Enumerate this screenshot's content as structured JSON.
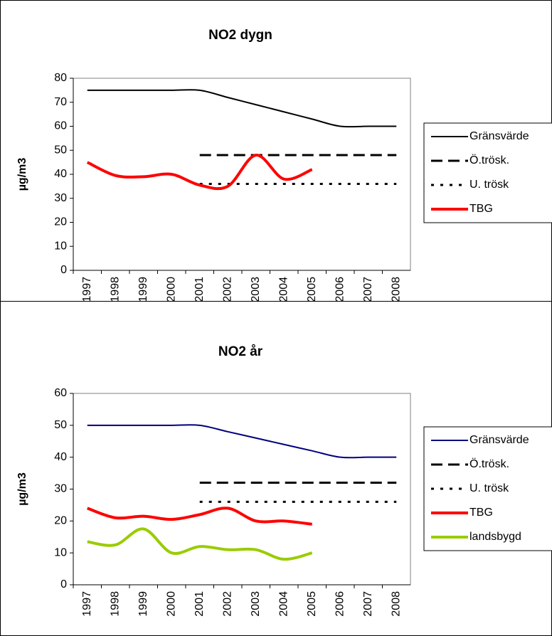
{
  "chart_data": [
    {
      "type": "line",
      "title": "NO2 dygn",
      "y_label": "µg/m3",
      "categories": [
        "1997",
        "1998",
        "1999",
        "2000",
        "2001",
        "2002",
        "2003",
        "2004",
        "2005",
        "2006",
        "2007",
        "2008"
      ],
      "ylim": [
        0,
        80
      ],
      "yticks": [
        0,
        10,
        20,
        30,
        40,
        50,
        60,
        70,
        80
      ],
      "series": [
        {
          "name": "Gränsvärde",
          "color": "#000000",
          "style": "solid",
          "values": [
            75,
            75,
            75,
            75,
            75,
            72,
            69,
            66,
            63,
            60,
            60,
            60
          ]
        },
        {
          "name": "Ö.trösk.",
          "color": "#000000",
          "style": "dashed",
          "values": [
            null,
            null,
            null,
            null,
            48,
            48,
            48,
            48,
            48,
            48,
            48,
            48
          ]
        },
        {
          "name": "U. trösk",
          "color": "#000000",
          "style": "dotted",
          "values": [
            null,
            null,
            null,
            null,
            36,
            36,
            36,
            36,
            36,
            36,
            36,
            36
          ]
        },
        {
          "name": "TBG",
          "color": "#ff0000",
          "style": "bold",
          "values": [
            45,
            39.5,
            39,
            40,
            35.5,
            35,
            48,
            38,
            42,
            null,
            null,
            null
          ]
        }
      ]
    },
    {
      "type": "line",
      "title": "NO2 år",
      "y_label": "µg/m3",
      "categories": [
        "1997",
        "1998",
        "1999",
        "2000",
        "2001",
        "2002",
        "2003",
        "2004",
        "2005",
        "2006",
        "2007",
        "2008"
      ],
      "ylim": [
        0,
        60
      ],
      "yticks": [
        0,
        10,
        20,
        30,
        40,
        50,
        60
      ],
      "series": [
        {
          "name": "Gränsvärde",
          "color": "#000080",
          "style": "solid",
          "values": [
            50,
            50,
            50,
            50,
            50,
            48,
            46,
            44,
            42,
            40,
            40,
            40
          ]
        },
        {
          "name": "Ö.trösk.",
          "color": "#000000",
          "style": "dashed",
          "values": [
            null,
            null,
            null,
            null,
            32,
            32,
            32,
            32,
            32,
            32,
            32,
            32
          ]
        },
        {
          "name": "U. trösk",
          "color": "#000000",
          "style": "dotted",
          "values": [
            null,
            null,
            null,
            null,
            26,
            26,
            26,
            26,
            26,
            26,
            26,
            26
          ]
        },
        {
          "name": "TBG",
          "color": "#ff0000",
          "style": "bold",
          "values": [
            24,
            21,
            21.5,
            20.5,
            22,
            24,
            20,
            20,
            19,
            null,
            null,
            null
          ]
        },
        {
          "name": "landsbygd",
          "color": "#99cc00",
          "style": "bold",
          "values": [
            13.5,
            12.5,
            17.5,
            10,
            12,
            11,
            11,
            8,
            10,
            null,
            null,
            null
          ]
        }
      ]
    }
  ]
}
